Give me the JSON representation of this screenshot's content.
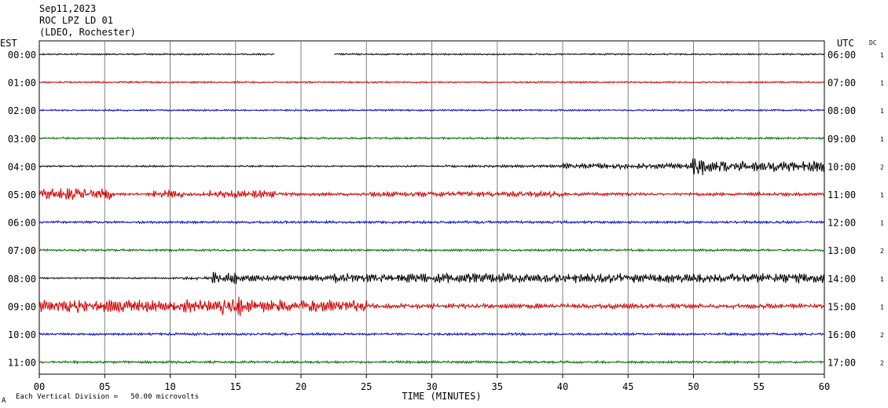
{
  "header": {
    "date": "Sep11,2023",
    "station": "ROC LPZ LD 01",
    "network": "(LDEO, Rochester)"
  },
  "left_tz": "EST",
  "right_tz": "UTC",
  "dc_label": "DC",
  "footer": {
    "division_note": "Each Vertical Division =   50.00 microvolts",
    "corner_mark": "A"
  },
  "colors": {
    "black": "#000000",
    "red": "#cc0000",
    "blue": "#0000cc",
    "green": "#006600",
    "grid": "#808080"
  },
  "chart_data": {
    "type": "line",
    "title": "",
    "xlabel": "TIME (MINUTES)",
    "ylabel": "",
    "xlim": [
      0,
      60
    ],
    "x_ticks": [
      "00",
      "05",
      "10",
      "15",
      "20",
      "25",
      "30",
      "35",
      "40",
      "45",
      "50",
      "55",
      "60"
    ],
    "grid": true,
    "series": [
      {
        "est": "00:00",
        "utc": "06:00",
        "dc": "1",
        "color": "black",
        "baseline_amp": 1.0,
        "gaps": [
          [
            18,
            22.5
          ]
        ],
        "events": []
      },
      {
        "est": "01:00",
        "utc": "07:00",
        "dc": "1",
        "color": "red",
        "baseline_amp": 1.1,
        "gaps": [],
        "events": []
      },
      {
        "est": "02:00",
        "utc": "08:00",
        "dc": "1",
        "color": "blue",
        "baseline_amp": 1.1,
        "gaps": [],
        "events": []
      },
      {
        "est": "03:00",
        "utc": "09:00",
        "dc": "1",
        "color": "green",
        "baseline_amp": 1.3,
        "gaps": [],
        "events": []
      },
      {
        "est": "04:00",
        "utc": "10:00",
        "dc": "2",
        "color": "black",
        "baseline_amp": 1.0,
        "gaps": [],
        "events": [
          {
            "start": 31,
            "end": 40,
            "amp": 1.5
          },
          {
            "start": 40,
            "end": 49.8,
            "amp": 3.5
          },
          {
            "start": 49.8,
            "end": 51,
            "amp": 11
          },
          {
            "start": 51,
            "end": 60,
            "amp": 7
          }
        ]
      },
      {
        "est": "05:00",
        "utc": "11:00",
        "dc": "1",
        "color": "red",
        "baseline_amp": 2.0,
        "gaps": [],
        "events": [
          {
            "start": 0,
            "end": 5.5,
            "amp": 7
          },
          {
            "start": 8.5,
            "end": 11,
            "amp": 5
          },
          {
            "start": 13,
            "end": 18,
            "amp": 5
          },
          {
            "start": 25,
            "end": 40,
            "amp": 3.5
          }
        ]
      },
      {
        "est": "06:00",
        "utc": "12:00",
        "dc": "1",
        "color": "blue",
        "baseline_amp": 1.6,
        "gaps": [],
        "events": []
      },
      {
        "est": "07:00",
        "utc": "13:00",
        "dc": "2",
        "color": "green",
        "baseline_amp": 1.4,
        "gaps": [],
        "events": []
      },
      {
        "est": "08:00",
        "utc": "14:00",
        "dc": "1",
        "color": "black",
        "baseline_amp": 1.0,
        "gaps": [],
        "events": [
          {
            "start": 11,
            "end": 13.2,
            "amp": 2
          },
          {
            "start": 13.2,
            "end": 15.2,
            "amp": 8
          },
          {
            "start": 15.2,
            "end": 22.5,
            "amp": 4
          },
          {
            "start": 22.5,
            "end": 60,
            "amp": 6
          }
        ]
      },
      {
        "est": "09:00",
        "utc": "15:00",
        "dc": "1",
        "color": "red",
        "baseline_amp": 2.5,
        "gaps": [],
        "events": [
          {
            "start": 0,
            "end": 14,
            "amp": 8
          },
          {
            "start": 14,
            "end": 15.5,
            "amp": 14
          },
          {
            "start": 15.5,
            "end": 25,
            "amp": 8
          },
          {
            "start": 25,
            "end": 60,
            "amp": 3
          }
        ]
      },
      {
        "est": "10:00",
        "utc": "16:00",
        "dc": "2",
        "color": "blue",
        "baseline_amp": 1.5,
        "gaps": [],
        "events": []
      },
      {
        "est": "11:00",
        "utc": "17:00",
        "dc": "2",
        "color": "green",
        "baseline_amp": 1.5,
        "gaps": [],
        "events": []
      }
    ]
  }
}
